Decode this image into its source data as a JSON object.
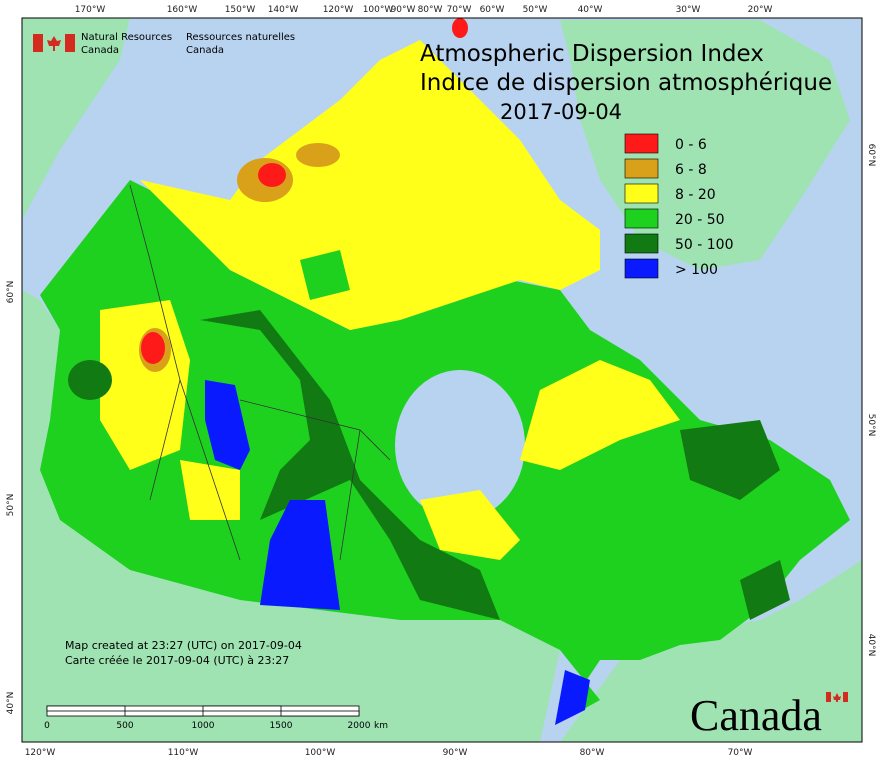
{
  "header": {
    "org_en": "Natural Resources\nCanada",
    "org_fr": "Ressources naturelles\nCanada"
  },
  "title": {
    "line1": "Atmospheric Dispersion Index",
    "line2": "Indice de dispersion atmosphérique",
    "date": "2017-09-04"
  },
  "legend": [
    {
      "label": "0 - 6",
      "color": "#ff1a1a"
    },
    {
      "label": "6 - 8",
      "color": "#d9a11a"
    },
    {
      "label": "8 - 20",
      "color": "#ffff1a"
    },
    {
      "label": "20 - 50",
      "color": "#1fd11f"
    },
    {
      "label": "50 - 100",
      "color": "#127a12"
    },
    {
      "label": "> 100",
      "color": "#0a1aff"
    }
  ],
  "graticule": {
    "top": [
      "170°W",
      "160°W",
      "150°W",
      "140°W",
      "120°W",
      "100°W",
      "90°W",
      "80°W",
      "70°W",
      "60°W",
      "50°W",
      "40°W",
      "30°W",
      "20°W"
    ],
    "bottom": [
      "120°W",
      "110°W",
      "100°W",
      "90°W",
      "80°W",
      "70°W"
    ],
    "left": [
      "60°N",
      "50°N",
      "40°N"
    ],
    "right": [
      "60°N",
      "50°N",
      "40°N"
    ]
  },
  "credits": {
    "line1": "Map created at 23:27 (UTC) on 2017-09-04",
    "line2": "Carte créée le 2017-09-04 (UTC) à 23:27"
  },
  "scale_bar": {
    "ticks": [
      "0",
      "500",
      "1000",
      "1500",
      "2000"
    ],
    "unit": "km"
  },
  "wordmark": "Canada"
}
